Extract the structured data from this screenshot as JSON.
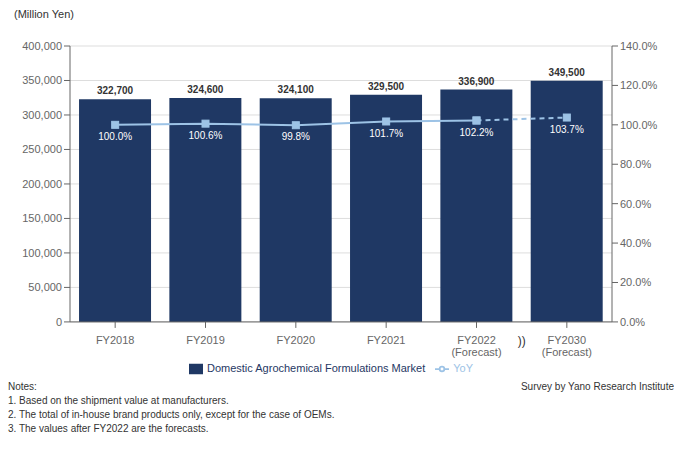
{
  "chart_data": {
    "type": "bar",
    "title": "(Million Yen)",
    "categories": [
      "FY2018",
      "FY2019",
      "FY2020",
      "FY2021",
      "FY2022\n(Forecast)",
      "FY2030\n(Forecast)"
    ],
    "series": [
      {
        "name": "Domestic Agrochemical Formulations Market",
        "type": "bar",
        "color": "#1F3864",
        "values": [
          322700,
          324600,
          324100,
          329500,
          336900,
          349500
        ],
        "value_labels": [
          "322,700",
          "324,600",
          "324,100",
          "329,500",
          "336,900",
          "349,500"
        ],
        "data_labels": true
      },
      {
        "name": "YoY",
        "type": "line",
        "color": "#9DC3E6",
        "axis": "y2",
        "marker": "square",
        "values": [
          100.0,
          100.6,
          99.8,
          101.7,
          102.2,
          103.7
        ],
        "value_labels": [
          "100.0%",
          "100.6%",
          "99.8%",
          "101.7%",
          "102.2%",
          "103.7%"
        ],
        "data_labels": true
      }
    ],
    "ylim": [
      0,
      400000
    ],
    "yticks": [
      0,
      {
        "value": 50000,
        "label": "50,000"
      },
      {
        "value": 100000,
        "label": "100,000"
      },
      {
        "value": 150000,
        "label": "150,000"
      },
      {
        "value": 200000,
        "label": "200,000"
      },
      {
        "value": 250000,
        "label": "250,000"
      },
      {
        "value": 300000,
        "label": "300,000"
      },
      {
        "value": 350000,
        "label": "350,000"
      },
      {
        "value": 400000,
        "label": "400,000"
      }
    ],
    "y2lim": [
      0.0,
      140.0
    ],
    "y2ticks": [
      {
        "value": 0,
        "label": "0.0%"
      },
      {
        "value": 20,
        "label": "20.0%"
      },
      {
        "value": 40,
        "label": "40.0%"
      },
      {
        "value": 60,
        "label": "60.0%"
      },
      {
        "value": 80,
        "label": "80.0%"
      },
      {
        "value": 100,
        "label": "100.0%"
      },
      {
        "value": 120,
        "label": "120.0%"
      },
      {
        "value": 140,
        "label": "140.0%"
      }
    ],
    "grid": true,
    "legend": "bottom",
    "annotations": [
      "))",
      "Notes:\n1. Based on the shipment value at manufacturers.\n2. The total of in-house brand products only, except for the case of OEMs.\n3. The values after FY2022 are the forecasts.",
      "Survey by Yano Research Institute"
    ]
  }
}
